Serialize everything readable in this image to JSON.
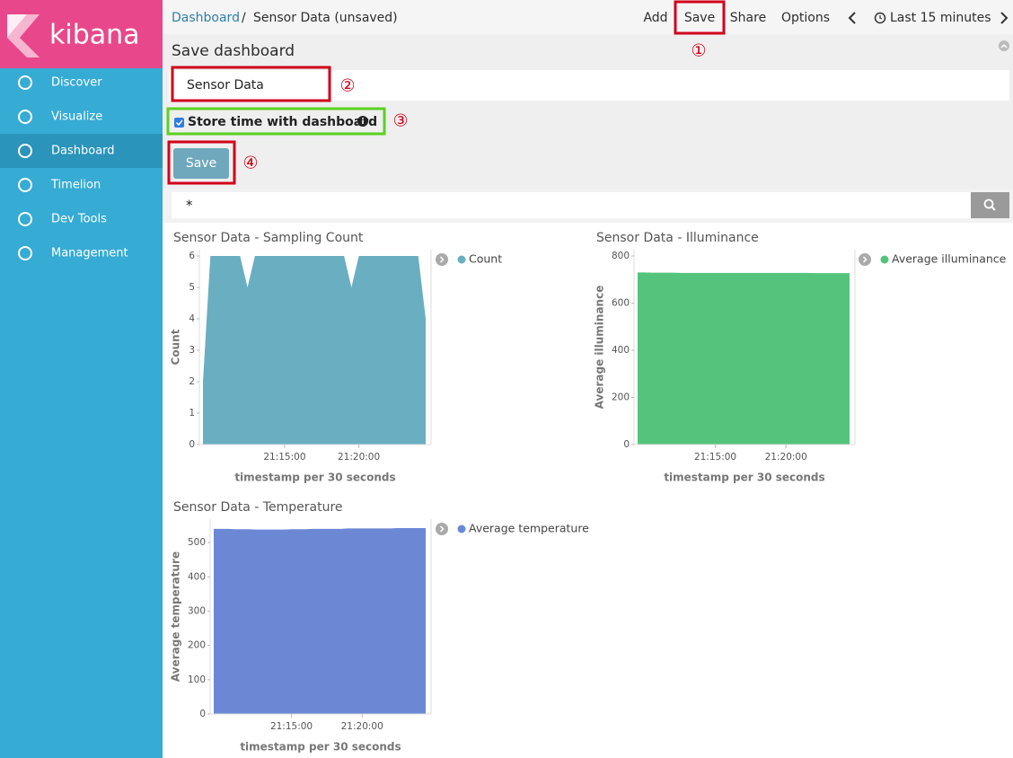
{
  "app": {
    "logo": "kibana"
  },
  "sidebar": {
    "items": [
      "Discover",
      "Visualize",
      "Dashboard",
      "Timelion",
      "Dev Tools",
      "Management"
    ]
  },
  "breadcrumb": {
    "parent": "Dashboard",
    "separator": "/",
    "current": "Sensor Data (unsaved)"
  },
  "toolbar": {
    "items": [
      "Add",
      "Save",
      "Share",
      "Options"
    ],
    "time": "Last 15 minutes"
  },
  "save_panel": {
    "title": "Save dashboard",
    "input_value": "Sensor Data",
    "checkbox_label": "Store time with dashboard",
    "button": "Save"
  },
  "annotations": [
    "①",
    "②",
    "③",
    "④"
  ],
  "query": "*",
  "chart_data": [
    {
      "type": "area",
      "title": "Sensor Data - Sampling Count",
      "xlabel": "timestamp per 30 seconds",
      "ylabel": "Count",
      "x": [
        "21:09:30",
        "21:10:00",
        "21:10:30",
        "21:11:00",
        "21:11:30",
        "21:12:00",
        "21:12:30",
        "21:13:00",
        "21:13:30",
        "21:14:00",
        "21:14:30",
        "21:15:00",
        "21:15:30",
        "21:16:00",
        "21:16:30",
        "21:17:00",
        "21:17:30",
        "21:18:00",
        "21:18:30",
        "21:19:00",
        "21:19:30",
        "21:20:00",
        "21:20:30",
        "21:21:00",
        "21:21:30",
        "21:22:00",
        "21:22:30",
        "21:23:00",
        "21:23:30",
        "21:24:00",
        "21:24:30"
      ],
      "series": [
        {
          "name": "Count",
          "color": "#6aaec2",
          "values": [
            2,
            6,
            6,
            6,
            6,
            6,
            5,
            6,
            6,
            6,
            6,
            6,
            6,
            6,
            6,
            6,
            6,
            6,
            6,
            6,
            5,
            6,
            6,
            6,
            6,
            6,
            6,
            6,
            6,
            6,
            4
          ]
        }
      ],
      "ylim": [
        0,
        6
      ],
      "yticks": [
        0,
        1,
        2,
        3,
        4,
        5,
        6
      ],
      "xticks": [
        "21:15:00",
        "21:20:00"
      ]
    },
    {
      "type": "area",
      "title": "Sensor Data - Illuminance",
      "xlabel": "timestamp per 30 seconds",
      "ylabel": "Average illuminance",
      "x": [
        "21:09:30",
        "21:10:00",
        "21:10:30",
        "21:11:00",
        "21:11:30",
        "21:12:00",
        "21:12:30",
        "21:13:00",
        "21:13:30",
        "21:14:00",
        "21:14:30",
        "21:15:00",
        "21:15:30",
        "21:16:00",
        "21:16:30",
        "21:17:00",
        "21:17:30",
        "21:18:00",
        "21:18:30",
        "21:19:00",
        "21:19:30",
        "21:20:00",
        "21:20:30",
        "21:21:00",
        "21:21:30",
        "21:22:00",
        "21:22:30",
        "21:23:00",
        "21:23:30",
        "21:24:00",
        "21:24:30"
      ],
      "series": [
        {
          "name": "Average illuminance",
          "color": "#54c47c",
          "values": [
            730,
            730,
            729,
            729,
            729,
            729,
            728,
            728,
            728,
            728,
            728,
            728,
            728,
            728,
            728,
            728,
            728,
            728,
            728,
            728,
            728,
            728,
            728,
            728,
            728,
            727,
            727,
            727,
            727,
            727,
            727
          ]
        }
      ],
      "ylim": [
        0,
        800
      ],
      "yticks": [
        0,
        200,
        400,
        600,
        800
      ],
      "xticks": [
        "21:15:00",
        "21:20:00"
      ]
    },
    {
      "type": "area",
      "title": "Sensor Data - Temperature",
      "xlabel": "timestamp per 30 seconds",
      "ylabel": "Average temperature",
      "x": [
        "21:09:30",
        "21:10:00",
        "21:10:30",
        "21:11:00",
        "21:11:30",
        "21:12:00",
        "21:12:30",
        "21:13:00",
        "21:13:30",
        "21:14:00",
        "21:14:30",
        "21:15:00",
        "21:15:30",
        "21:16:00",
        "21:16:30",
        "21:17:00",
        "21:17:30",
        "21:18:00",
        "21:18:30",
        "21:19:00",
        "21:19:30",
        "21:20:00",
        "21:20:30",
        "21:21:00",
        "21:21:30",
        "21:22:00",
        "21:22:30",
        "21:23:00",
        "21:23:30",
        "21:24:00",
        "21:24:30"
      ],
      "series": [
        {
          "name": "Average temperature",
          "color": "#6c88d5",
          "values": [
            540,
            540,
            540,
            539,
            539,
            539,
            538,
            538,
            538,
            538,
            538,
            539,
            539,
            539,
            540,
            540,
            540,
            540,
            540,
            541,
            541,
            541,
            541,
            541,
            541,
            541,
            542,
            542,
            542,
            542,
            542
          ]
        }
      ],
      "ylim": [
        0,
        550
      ],
      "yticks": [
        0,
        100,
        200,
        300,
        400,
        500
      ],
      "xticks": [
        "21:15:00",
        "21:20:00"
      ]
    }
  ]
}
